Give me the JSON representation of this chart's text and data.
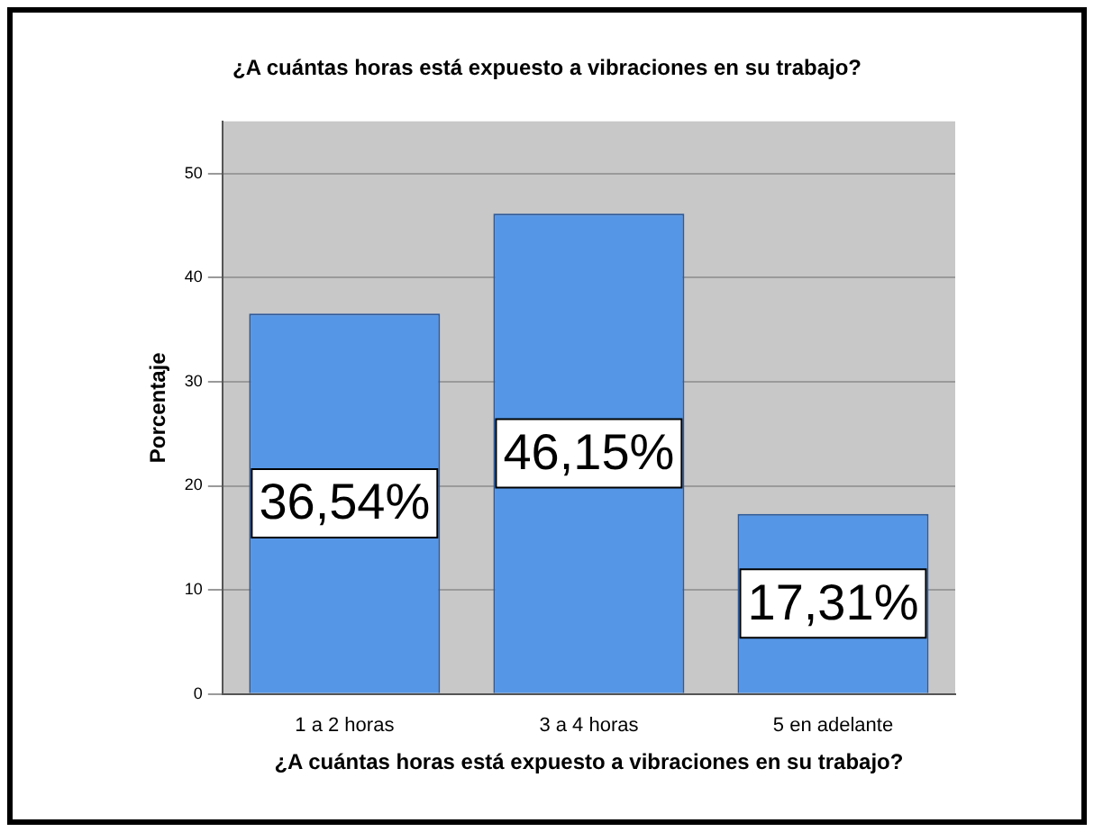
{
  "chart_data": {
    "type": "bar",
    "title": "¿A cuántas horas está expuesto a vibraciones en su trabajo?",
    "xlabel": "¿A cuántas horas está expuesto a vibraciones en su trabajo?",
    "ylabel": "Porcentaje",
    "categories": [
      "1 a 2 horas",
      "3 a 4 horas",
      "5 en adelante"
    ],
    "values": [
      36.54,
      46.15,
      17.31
    ],
    "value_labels": [
      "36,54%",
      "46,15%",
      "17,31%"
    ],
    "color": "#5596e6",
    "ylim": [
      0,
      55
    ],
    "yticks": [
      0,
      10,
      20,
      30,
      40,
      50
    ],
    "grid": "y"
  }
}
